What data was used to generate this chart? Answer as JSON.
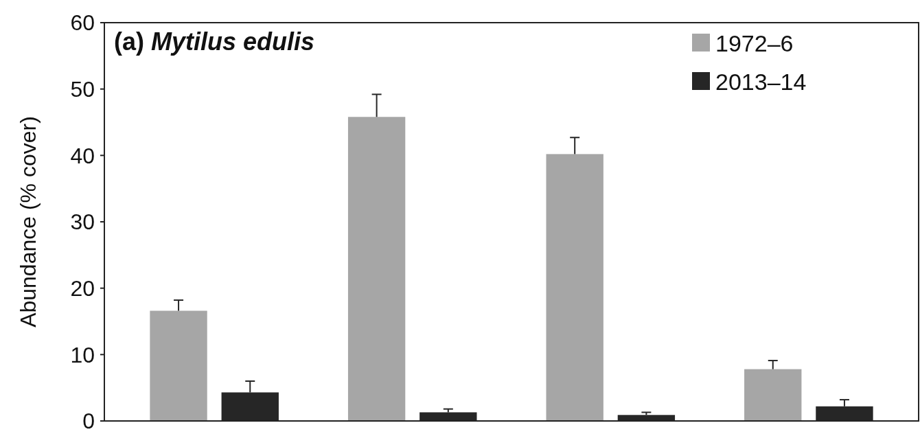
{
  "chart_data": {
    "type": "bar",
    "title": "(a) Mytilus edulis",
    "ylabel": "Abundance (% cover)",
    "categories": [
      null,
      null,
      null,
      null
    ],
    "series": [
      {
        "name": "1972–6",
        "color": "#a6a6a6",
        "values": [
          16.6,
          45.8,
          40.2,
          7.8
        ],
        "errors": [
          [
            16.6,
            18.2
          ],
          [
            45.8,
            49.2
          ],
          [
            40.2,
            42.7
          ],
          [
            7.8,
            9.1
          ]
        ]
      },
      {
        "name": "2013–14",
        "color": "#262626",
        "values": [
          4.3,
          1.3,
          0.9,
          2.2
        ],
        "errors": [
          [
            4.3,
            6.0
          ],
          [
            1.3,
            1.8
          ],
          [
            0.9,
            1.3
          ],
          [
            2.2,
            3.2
          ]
        ]
      }
    ],
    "ylim": [
      0,
      60
    ],
    "yticks": [
      0,
      10,
      20,
      30,
      40,
      50,
      60
    ],
    "grid": false,
    "legend": "top right"
  }
}
